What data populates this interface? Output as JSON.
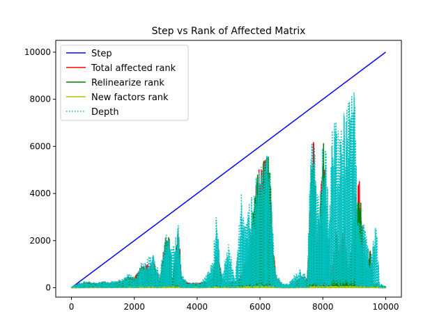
{
  "chart_data": {
    "type": "line",
    "title": "Step vs Rank of Affected Matrix",
    "xlabel": "",
    "ylabel": "",
    "xlim": [
      -500,
      10500
    ],
    "ylim": [
      -400,
      10500
    ],
    "xticks": [
      0,
      2000,
      4000,
      6000,
      8000,
      10000
    ],
    "yticks": [
      0,
      2000,
      4000,
      6000,
      8000,
      10000
    ],
    "grid": false,
    "legend_position": "top-left",
    "series": [
      {
        "name": "Step",
        "color": "#0000ff",
        "style": "solid",
        "points": [
          [
            0,
            0
          ],
          [
            10000,
            10000
          ]
        ]
      },
      {
        "name": "Total affected rank",
        "color": "#ff0000",
        "style": "solid",
        "envelope": [
          [
            0,
            20
          ],
          [
            200,
            150
          ],
          [
            400,
            200
          ],
          [
            600,
            250
          ],
          [
            800,
            200
          ],
          [
            1000,
            250
          ],
          [
            1200,
            200
          ],
          [
            1400,
            250
          ],
          [
            1600,
            300
          ],
          [
            1800,
            500
          ],
          [
            2000,
            400
          ],
          [
            2100,
            700
          ],
          [
            2200,
            1000
          ],
          [
            2400,
            1000
          ],
          [
            2600,
            1200
          ],
          [
            2800,
            300
          ],
          [
            3000,
            2400
          ],
          [
            3100,
            2300
          ],
          [
            3200,
            300
          ],
          [
            3400,
            2700
          ],
          [
            3500,
            400
          ],
          [
            3700,
            200
          ],
          [
            3900,
            200
          ],
          [
            4100,
            200
          ],
          [
            4300,
            300
          ],
          [
            4500,
            500
          ],
          [
            4600,
            1500
          ],
          [
            4700,
            1200
          ],
          [
            4800,
            300
          ],
          [
            5000,
            200
          ],
          [
            5200,
            300
          ],
          [
            5400,
            500
          ],
          [
            5500,
            1100
          ],
          [
            5600,
            1200
          ],
          [
            5800,
            3800
          ],
          [
            5900,
            4800
          ],
          [
            6000,
            5400
          ],
          [
            6100,
            5500
          ],
          [
            6200,
            5700
          ],
          [
            6300,
            5800
          ],
          [
            6400,
            2000
          ],
          [
            6500,
            500
          ],
          [
            6700,
            100
          ],
          [
            6900,
            100
          ],
          [
            7100,
            200
          ],
          [
            7300,
            500
          ],
          [
            7500,
            400
          ],
          [
            7600,
            4400
          ],
          [
            7700,
            6800
          ],
          [
            7800,
            2000
          ],
          [
            7900,
            3500
          ],
          [
            8000,
            7200
          ],
          [
            8100,
            3000
          ],
          [
            8200,
            1200
          ],
          [
            8300,
            800
          ],
          [
            8400,
            2700
          ],
          [
            8500,
            1700
          ],
          [
            8600,
            2300
          ],
          [
            8700,
            2500
          ],
          [
            8800,
            800
          ],
          [
            8900,
            2000
          ],
          [
            9000,
            3700
          ],
          [
            9100,
            4600
          ],
          [
            9200,
            4500
          ],
          [
            9300,
            1500
          ],
          [
            9400,
            600
          ],
          [
            9500,
            1800
          ],
          [
            9600,
            200
          ],
          [
            9800,
            100
          ],
          [
            10000,
            50
          ]
        ]
      },
      {
        "name": "Relinearize rank",
        "color": "#008000",
        "style": "solid",
        "envelope": [
          [
            0,
            20
          ],
          [
            200,
            120
          ],
          [
            400,
            180
          ],
          [
            600,
            230
          ],
          [
            800,
            180
          ],
          [
            1000,
            230
          ],
          [
            1200,
            180
          ],
          [
            1400,
            230
          ],
          [
            1600,
            280
          ],
          [
            1800,
            450
          ],
          [
            2000,
            350
          ],
          [
            2100,
            650
          ],
          [
            2200,
            900
          ],
          [
            2400,
            900
          ],
          [
            2600,
            1100
          ],
          [
            2800,
            280
          ],
          [
            3000,
            2300
          ],
          [
            3100,
            2200
          ],
          [
            3200,
            280
          ],
          [
            3400,
            2600
          ],
          [
            3500,
            350
          ],
          [
            3700,
            180
          ],
          [
            3900,
            180
          ],
          [
            4100,
            180
          ],
          [
            4300,
            280
          ],
          [
            4500,
            450
          ],
          [
            4600,
            1400
          ],
          [
            4700,
            1100
          ],
          [
            4800,
            280
          ],
          [
            5000,
            180
          ],
          [
            5200,
            280
          ],
          [
            5400,
            450
          ],
          [
            5500,
            1000
          ],
          [
            5600,
            1100
          ],
          [
            5800,
            3600
          ],
          [
            5900,
            4700
          ],
          [
            6000,
            5300
          ],
          [
            6100,
            5400
          ],
          [
            6200,
            5600
          ],
          [
            6300,
            5700
          ],
          [
            6400,
            1800
          ],
          [
            6500,
            450
          ],
          [
            6700,
            80
          ],
          [
            6900,
            80
          ],
          [
            7100,
            180
          ],
          [
            7300,
            450
          ],
          [
            7500,
            350
          ],
          [
            7600,
            4000
          ],
          [
            7700,
            6600
          ],
          [
            7800,
            1800
          ],
          [
            7900,
            3200
          ],
          [
            8000,
            7000
          ],
          [
            8100,
            2800
          ],
          [
            8200,
            1000
          ],
          [
            8300,
            700
          ],
          [
            8400,
            2500
          ],
          [
            8500,
            1500
          ],
          [
            8600,
            2100
          ],
          [
            8700,
            2300
          ],
          [
            8800,
            700
          ],
          [
            8900,
            1800
          ],
          [
            9000,
            3500
          ],
          [
            9100,
            4400
          ],
          [
            9200,
            4300
          ],
          [
            9300,
            1300
          ],
          [
            9400,
            500
          ],
          [
            9500,
            1600
          ],
          [
            9600,
            180
          ],
          [
            9800,
            80
          ],
          [
            10000,
            40
          ]
        ]
      },
      {
        "name": "New factors rank",
        "color": "#bfbf00",
        "style": "solid",
        "envelope": [
          [
            0,
            10
          ],
          [
            1000,
            30
          ],
          [
            2000,
            40
          ],
          [
            3000,
            50
          ],
          [
            4000,
            40
          ],
          [
            5000,
            50
          ],
          [
            6000,
            60
          ],
          [
            7000,
            40
          ],
          [
            8000,
            60
          ],
          [
            9000,
            60
          ],
          [
            10000,
            30
          ]
        ]
      },
      {
        "name": "Depth",
        "color": "#00bfbf",
        "style": "dotted",
        "envelope": [
          [
            0,
            20
          ],
          [
            200,
            200
          ],
          [
            400,
            300
          ],
          [
            600,
            250
          ],
          [
            800,
            200
          ],
          [
            1000,
            300
          ],
          [
            1200,
            250
          ],
          [
            1400,
            300
          ],
          [
            1600,
            350
          ],
          [
            1800,
            600
          ],
          [
            2000,
            450
          ],
          [
            2100,
            700
          ],
          [
            2200,
            1050
          ],
          [
            2400,
            1300
          ],
          [
            2500,
            1500
          ],
          [
            2600,
            1400
          ],
          [
            2800,
            600
          ],
          [
            3000,
            2400
          ],
          [
            3100,
            2200
          ],
          [
            3200,
            1600
          ],
          [
            3400,
            2700
          ],
          [
            3500,
            600
          ],
          [
            3700,
            200
          ],
          [
            3900,
            200
          ],
          [
            4100,
            200
          ],
          [
            4300,
            600
          ],
          [
            4500,
            1200
          ],
          [
            4600,
            3400
          ],
          [
            4700,
            1600
          ],
          [
            4800,
            500
          ],
          [
            5000,
            2100
          ],
          [
            5200,
            300
          ],
          [
            5400,
            4100
          ],
          [
            5500,
            2800
          ],
          [
            5600,
            3000
          ],
          [
            5700,
            4300
          ],
          [
            5800,
            4000
          ],
          [
            5900,
            5000
          ],
          [
            6000,
            5400
          ],
          [
            6100,
            5600
          ],
          [
            6200,
            5600
          ],
          [
            6300,
            5700
          ],
          [
            6400,
            2500
          ],
          [
            6500,
            600
          ],
          [
            6700,
            200
          ],
          [
            6900,
            200
          ],
          [
            7100,
            600
          ],
          [
            7300,
            800
          ],
          [
            7500,
            500
          ],
          [
            7600,
            5800
          ],
          [
            7700,
            6500
          ],
          [
            7800,
            5000
          ],
          [
            7900,
            3500
          ],
          [
            8000,
            6900
          ],
          [
            8100,
            6200
          ],
          [
            8200,
            2800
          ],
          [
            8300,
            7300
          ],
          [
            8400,
            7300
          ],
          [
            8500,
            6800
          ],
          [
            8600,
            7100
          ],
          [
            8700,
            7700
          ],
          [
            8800,
            8000
          ],
          [
            8900,
            8300
          ],
          [
            9000,
            8400
          ],
          [
            9100,
            3500
          ],
          [
            9200,
            2800
          ],
          [
            9300,
            2700
          ],
          [
            9400,
            2100
          ],
          [
            9500,
            1200
          ],
          [
            9600,
            2200
          ],
          [
            9700,
            2800
          ],
          [
            9800,
            200
          ],
          [
            10000,
            30
          ]
        ]
      }
    ]
  }
}
